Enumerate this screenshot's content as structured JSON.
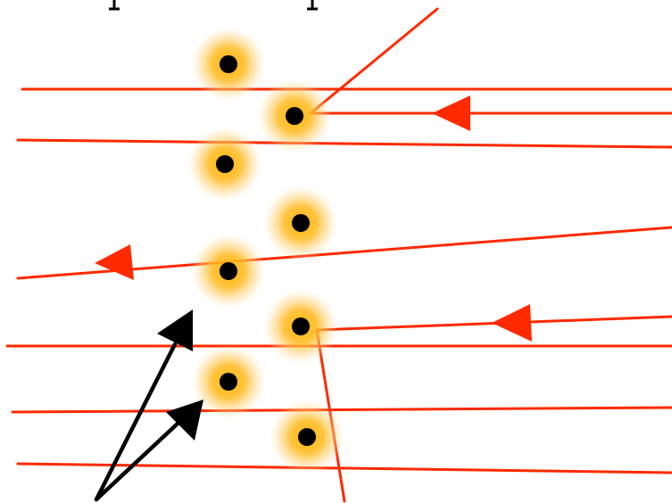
{
  "diagram": {
    "kind": "ray diagram: parallel rays incident on a staggered layer of glowing point particles",
    "colors": {
      "background": "#ffffff",
      "ray": "#ff2a00",
      "ray_faint": "#ff8a80",
      "particle_core": "#000000",
      "particle_glow": "#ffb300",
      "pointer": "#000000",
      "top_marks": "#000000"
    },
    "particle_count": 8,
    "ray_count": 7,
    "pointer_count": 2
  }
}
